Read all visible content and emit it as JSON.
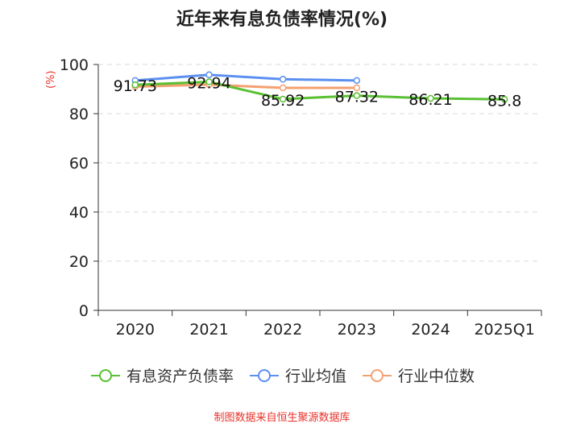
{
  "chart_data": {
    "type": "line",
    "title": "近年来有息负债率情况(%)",
    "ylabel": "(%)",
    "categories": [
      "2020",
      "2021",
      "2022",
      "2023",
      "2024",
      "2025Q1"
    ],
    "ylim": [
      0,
      100
    ],
    "yticks": [
      0,
      20,
      40,
      60,
      80,
      100
    ],
    "grid": true,
    "legend_position": "bottom",
    "series": [
      {
        "name": "有息资产负债率",
        "color": "#5ac033",
        "values": [
          91.73,
          92.94,
          85.92,
          87.32,
          86.21,
          85.8
        ],
        "labels": [
          "91.73",
          "92.94",
          "85.92",
          "87.32",
          "86.21",
          "85.8"
        ]
      },
      {
        "name": "行业均值",
        "color": "#5b8ff0",
        "values": [
          93.5,
          95.8,
          94.0,
          93.5,
          null,
          null
        ]
      },
      {
        "name": "行业中位数",
        "color": "#f5a071",
        "values": [
          91.0,
          91.8,
          90.5,
          90.5,
          null,
          null
        ]
      }
    ]
  },
  "source": "制图数据来自恒生聚源数据库"
}
